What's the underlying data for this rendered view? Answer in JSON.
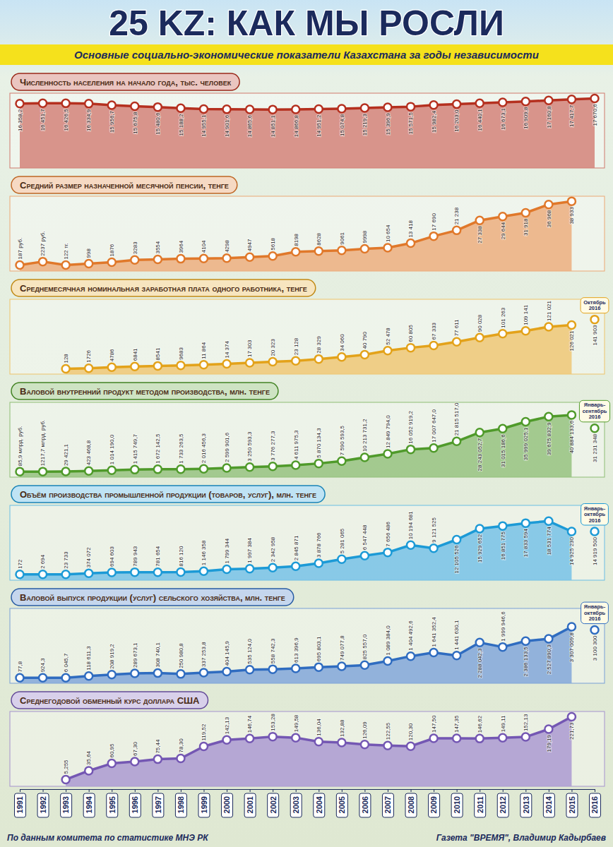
{
  "title": "25 KZ: КАК МЫ РОСЛИ",
  "subtitle": "Основные социально-экономические показатели Казахстана за годы независимости",
  "source": "По данным комитета по статистике МНЭ РК",
  "credit": "Газета \"ВРЕМЯ\", Владимир Кадырбаев",
  "chart_data": [
    {
      "type": "area",
      "title": "Численность населения на начало года, тыс. человек",
      "categories": [
        "1991",
        "1992",
        "1993",
        "1994",
        "1995",
        "1996",
        "1997",
        "1998",
        "1999",
        "2000",
        "2001",
        "2002",
        "2003",
        "2004",
        "2005",
        "2006",
        "2007",
        "2008",
        "2009",
        "2010",
        "2011",
        "2012",
        "2013",
        "2014",
        "2015",
        "2016"
      ],
      "ylim": [
        0,
        19000
      ],
      "tick_labels": false,
      "data_labels": true,
      "color": "#b5301f",
      "series": [
        {
          "type": "area",
          "values": [
            16358.2,
            16451.7,
            16426.5,
            16334.9,
            15956.7,
            15675.8,
            15480.6,
            15188.2,
            14955.1,
            14901.6,
            14865.6,
            14851.1,
            14866.8,
            14951.2,
            15074.8,
            15219.3,
            15396.9,
            15571.5,
            15982.4,
            16203.0,
            16440.1,
            16673.1,
            16909.8,
            17160.8,
            17417.7,
            17670.6
          ],
          "value_labels": [
            "16 358,2",
            "16 451,7",
            "16 426,5",
            "16 334,9",
            "15 956,7",
            "15 675,8",
            "15 480,6",
            "15 188,2",
            "14 955,1",
            "14 901,6",
            "14 865,6",
            "14 851,1",
            "14 866,8",
            "14 951,2",
            "15 074,8",
            "15 219,3",
            "15 396,9",
            "15 571,5",
            "15 982,4",
            "16 203,0",
            "16 440,1",
            "16 673,1",
            "16 909,8",
            "17 160,8",
            "17 417,7",
            "17 670,6"
          ]
        }
      ]
    },
    {
      "type": "area",
      "title": "Средний размер назначенной месячной пенсии, тенге",
      "categories": [
        "1991",
        "1992",
        "1993",
        "1994",
        "1995",
        "1996",
        "1997",
        "1998",
        "1999",
        "2000",
        "2001",
        "2002",
        "2003",
        "2004",
        "2005",
        "2006",
        "2007",
        "2008",
        "2009",
        "2010",
        "2011",
        "2012",
        "2013",
        "2014",
        "2015",
        "2016"
      ],
      "ylim": [
        -3500,
        42000
      ],
      "tick_labels": false,
      "data_labels": true,
      "color": "#e0782a",
      "series": [
        {
          "type": "area",
          "values": [
            187,
            2237,
            122,
            998,
            1876,
            3283,
            3554,
            3964,
            4104,
            4298,
            4947,
            5618,
            8198,
            8628,
            9061,
            9998,
            10654,
            13418,
            17690,
            21238,
            27338,
            29644,
            31918,
            36968,
            38933,
            null
          ],
          "value_labels": [
            "187 руб.",
            "2237 руб.",
            "122 тг.",
            "998",
            "1876",
            "3283",
            "3554",
            "3964",
            "4104",
            "4298",
            "4947",
            "5618",
            "8198",
            "8628",
            "9061",
            "9998",
            "10 654",
            "13 418",
            "17 690",
            "21 238",
            "27 338",
            "29 644",
            "31 918",
            "36 968",
            "38 933",
            null
          ]
        }
      ]
    },
    {
      "type": "area",
      "title": "Среднемесячная номинальная заработная плата одного работника, тенге",
      "categories": [
        "1991",
        "1992",
        "1993",
        "1994",
        "1995",
        "1996",
        "1997",
        "1998",
        "1999",
        "2000",
        "2001",
        "2002",
        "2003",
        "2004",
        "2005",
        "2006",
        "2007",
        "2008",
        "2009",
        "2010",
        "2011",
        "2012",
        "2013",
        "2014",
        "2015",
        "2016"
      ],
      "ylim": [
        -15000,
        200000
      ],
      "tick_labels": false,
      "data_labels": true,
      "color": "#e3a21a",
      "series": [
        {
          "type": "area",
          "values": [
            null,
            null,
            128,
            1726,
            4786,
            6841,
            8541,
            9683,
            11864,
            14374,
            17303,
            20323,
            23128,
            28329,
            34060,
            40790,
            52478,
            60805,
            67333,
            77611,
            90028,
            101263,
            109141,
            121021,
            126021,
            null
          ],
          "value_labels": [
            null,
            null,
            "128",
            "1726",
            "4786",
            "6841",
            "8541",
            "9683",
            "11 864",
            "14 374",
            "17 303",
            "20 323",
            "23 128",
            "28 329",
            "34 060",
            "40 790",
            "52 478",
            "60 805",
            "67 333",
            "77 611",
            "90 028",
            "101 263",
            "109 141",
            "121 021",
            "126 021",
            null
          ]
        },
        {
          "type": "scatter",
          "values": [
            null,
            null,
            null,
            null,
            null,
            null,
            null,
            null,
            null,
            null,
            null,
            null,
            null,
            null,
            null,
            null,
            null,
            null,
            null,
            null,
            null,
            null,
            null,
            null,
            null,
            141903
          ],
          "value_labels": [
            null,
            null,
            null,
            null,
            null,
            null,
            null,
            null,
            null,
            null,
            null,
            null,
            null,
            null,
            null,
            null,
            null,
            null,
            null,
            null,
            null,
            null,
            null,
            null,
            null,
            "141 903"
          ]
        }
      ],
      "annotations": [
        {
          "text": "Октябрь 2016",
          "x": "2016"
        }
      ]
    },
    {
      "type": "area",
      "title": "Валовой внутренний продукт методом производства, млн. тенге",
      "categories": [
        "1991",
        "1992",
        "1993",
        "1994",
        "1995",
        "1996",
        "1997",
        "1998",
        "1999",
        "2000",
        "2001",
        "2002",
        "2003",
        "2004",
        "2005",
        "2006",
        "2007",
        "2008",
        "2009",
        "2010",
        "2011",
        "2012",
        "2013",
        "2014",
        "2015",
        "2016"
      ],
      "ylim": [
        -4000000,
        50000000
      ],
      "tick_labels": false,
      "data_labels": true,
      "color": "#4f9a2a",
      "series": [
        {
          "type": "area",
          "values": [
            85.9,
            1217.7,
            29421.1,
            423468.8,
            1014190.0,
            1415749.7,
            1672142.5,
            1733263.5,
            2016456.3,
            2599901.6,
            3250593.3,
            3776277.3,
            4611975.3,
            5870134.3,
            7590593.5,
            10213731.2,
            12849794.0,
            16052919.2,
            17007647.0,
            21815517.0,
            28243052.7,
            31015186.6,
            35999025.1,
            39675832.9,
            40884133.6,
            null
          ],
          "value_labels": [
            "85,9 млрд. руб.",
            "1217,7 млрд. руб.",
            "29 421,1",
            "423 468,8",
            "1 014 190,0",
            "1 415 749,7",
            "1 672 142,5",
            "1 733 263,5",
            "2 016 456,3",
            "2 599 901,6",
            "3 250 593,3",
            "3 776 277,3",
            "4 611 975,3",
            "5 870 134,3",
            "7 590 593,5",
            "10 213 731,2",
            "12 849 794,0",
            "16 052 919,2",
            "17 007 647,0",
            "21 815 517,0",
            "28 243 052,7",
            "31 015 186,6",
            "35 999 025,1",
            "39 675 832,9",
            "40 884 133,6",
            null
          ]
        },
        {
          "type": "scatter",
          "values": [
            null,
            null,
            null,
            null,
            null,
            null,
            null,
            null,
            null,
            null,
            null,
            null,
            null,
            null,
            null,
            null,
            null,
            null,
            null,
            null,
            null,
            null,
            null,
            null,
            null,
            31231348
          ],
          "value_labels": [
            null,
            null,
            null,
            null,
            null,
            null,
            null,
            null,
            null,
            null,
            null,
            null,
            null,
            null,
            null,
            null,
            null,
            null,
            null,
            null,
            null,
            null,
            null,
            null,
            null,
            "31 231 348"
          ]
        }
      ],
      "annotations": [
        {
          "text": "Январь-сентябрь 2016",
          "x": "2016"
        }
      ]
    },
    {
      "type": "area",
      "title": "Объём производства промышленной продукции (товаров, услуг), млн. тенге",
      "categories": [
        "1991",
        "1992",
        "1993",
        "1994",
        "1995",
        "1996",
        "1997",
        "1998",
        "1999",
        "2000",
        "2001",
        "2002",
        "2003",
        "2004",
        "2005",
        "2006",
        "2007",
        "2008",
        "2009",
        "2010",
        "2011",
        "2012",
        "2013",
        "2014",
        "2015",
        "2016"
      ],
      "ylim": [
        -2000000,
        24000000
      ],
      "tick_labels": false,
      "data_labels": true,
      "color": "#1c9ad6",
      "series": [
        {
          "type": "area",
          "values": [
            172,
            2694,
            23733,
            374072,
            694603,
            789943,
            781654,
            816120,
            1146358,
            1799344,
            1997384,
            2342958,
            2845871,
            3878766,
            5281065,
            6547448,
            7656486,
            10194681,
            9121525,
            12105526,
            15929652,
            16851775,
            17833594,
            18531774,
            14925230,
            null
          ],
          "value_labels": [
            "172",
            "2 694",
            "23 733",
            "374 072",
            "694 603",
            "789 943",
            "781 654",
            "816 120",
            "1 146 358",
            "1 799 344",
            "1 997 384",
            "2 342 958",
            "2 845 871",
            "3 878 766",
            "5 281 065",
            "6 547 448",
            "7 656 486",
            "10 194 681",
            "9 121 525",
            "12 105 526",
            "15 929 652",
            "16 851 775",
            "17 833 594",
            "18 531 774",
            "14 925 230",
            null
          ]
        },
        {
          "type": "scatter",
          "values": [
            null,
            null,
            null,
            null,
            null,
            null,
            null,
            null,
            null,
            null,
            null,
            null,
            null,
            null,
            null,
            null,
            null,
            null,
            null,
            null,
            null,
            null,
            null,
            null,
            null,
            14919500
          ],
          "value_labels": [
            null,
            null,
            null,
            null,
            null,
            null,
            null,
            null,
            null,
            null,
            null,
            null,
            null,
            null,
            null,
            null,
            null,
            null,
            null,
            null,
            null,
            null,
            null,
            null,
            null,
            "14 919 500"
          ]
        }
      ],
      "annotations": [
        {
          "text": "Январь-октябрь 2016",
          "x": "2016"
        }
      ]
    },
    {
      "type": "area",
      "title": "Валовой выпуск продукции (услуг) сельского хозяйства, млн. тенге",
      "categories": [
        "1991",
        "1992",
        "1993",
        "1994",
        "1995",
        "1996",
        "1997",
        "1998",
        "1999",
        "2000",
        "2001",
        "2002",
        "2003",
        "2004",
        "2005",
        "2006",
        "2007",
        "2008",
        "2009",
        "2010",
        "2011",
        "2012",
        "2013",
        "2014",
        "2015",
        "2016"
      ],
      "ylim": [
        -350000,
        4500000
      ],
      "tick_labels": false,
      "data_labels": true,
      "color": "#2f6cc0",
      "series": [
        {
          "type": "area",
          "values": [
            77.8,
            924.3,
            6045.7,
            118611.3,
            208919.2,
            289673.1,
            308740.1,
            250980.8,
            337253.8,
            404145.9,
            535124.0,
            558742.3,
            613396.9,
            695803.1,
            749077.8,
            825557.0,
            1089384.0,
            1404492.6,
            1641352.4,
            1441630.1,
            2288042.3,
            1999946.6,
            2386133.5,
            2527890.3,
            3307009.8,
            null
          ],
          "value_labels": [
            "77,8",
            "924,3",
            "6 045,7",
            "118 611,3",
            "208 919,2",
            "289 673,1",
            "308 740,1",
            "250 980,8",
            "337 253,8",
            "404 145,9",
            "535 124,0",
            "558 742,3",
            "613 396,9",
            "695 803,1",
            "749 077,8",
            "825 557,0",
            "1 089 384,0",
            "1 404 492,6",
            "1 641 352,4",
            "1 441 630,1",
            "2 288 042,3",
            "1 999 946,6",
            "2 386 133,5",
            "2 527 890,3",
            "3 307 009,8",
            null
          ]
        },
        {
          "type": "scatter",
          "values": [
            null,
            null,
            null,
            null,
            null,
            null,
            null,
            null,
            null,
            null,
            null,
            null,
            null,
            null,
            null,
            null,
            null,
            null,
            null,
            null,
            null,
            null,
            null,
            null,
            null,
            3100300
          ],
          "value_labels": [
            null,
            null,
            null,
            null,
            null,
            null,
            null,
            null,
            null,
            null,
            null,
            null,
            null,
            null,
            null,
            null,
            null,
            null,
            null,
            null,
            null,
            null,
            null,
            null,
            null,
            "3 100 300"
          ]
        }
      ],
      "annotations": [
        {
          "text": "Январь-октябрь 2016",
          "x": "2016"
        }
      ]
    },
    {
      "type": "area",
      "title": "Среднегодовой обменный курс доллара США",
      "categories": [
        "1991",
        "1992",
        "1993",
        "1994",
        "1995",
        "1996",
        "1997",
        "1998",
        "1999",
        "2000",
        "2001",
        "2002",
        "2003",
        "2004",
        "2005",
        "2006",
        "2007",
        "2008",
        "2009",
        "2010",
        "2011",
        "2012",
        "2013",
        "2014",
        "2015",
        "2016"
      ],
      "ylim": [
        -18,
        240
      ],
      "tick_labels": "x",
      "data_labels": true,
      "color": "#7457b3",
      "series": [
        {
          "type": "area",
          "values": [
            null,
            null,
            5.255,
            35.64,
            60.95,
            67.3,
            75.44,
            78.3,
            119.52,
            142.13,
            146.74,
            153.28,
            149.58,
            136.04,
            132.88,
            126.09,
            122.55,
            120.3,
            147.5,
            147.35,
            146.62,
            149.11,
            152.13,
            179.19,
            221.73,
            null
          ],
          "value_labels": [
            null,
            null,
            "5,255",
            "35,64",
            "60,95",
            "67,30",
            "75,44",
            "78,30",
            "119,52",
            "142,13",
            "146,74",
            "153,28",
            "149,58",
            "136,04",
            "132,88",
            "126,09",
            "122,55",
            "120,30",
            "147,50",
            "147,35",
            "146,62",
            "149,11",
            "152,13",
            "179,19",
            "221,73",
            null
          ]
        }
      ]
    }
  ]
}
